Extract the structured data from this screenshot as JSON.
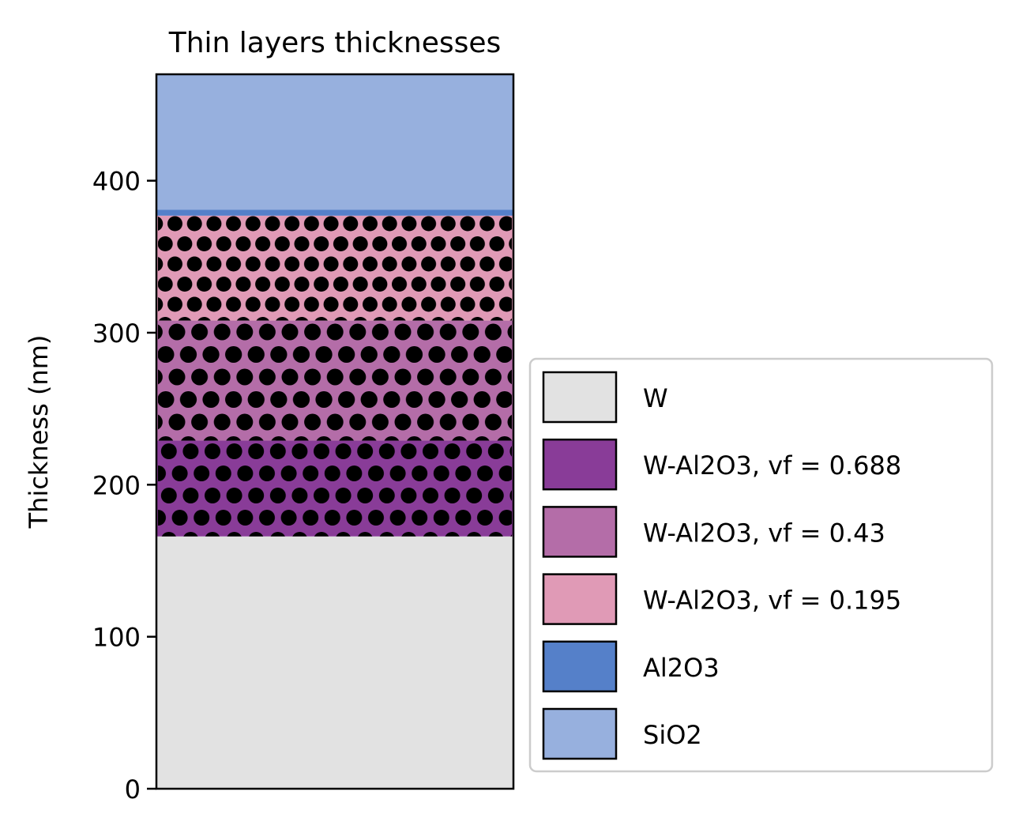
{
  "chart_data": {
    "type": "bar",
    "subtype": "stacked-layers",
    "title": "Thin layers thicknesses",
    "ylabel": "Thickness (nm)",
    "xlabel": "",
    "ylim": [
      0,
      470
    ],
    "yticks": [
      0,
      100,
      200,
      300,
      400
    ],
    "grid": false,
    "legend_position": "lower-right-outside",
    "layers": [
      {
        "name": "W",
        "bottom": 0,
        "thickness": 166,
        "color": "#e2e2e2",
        "pattern": "none"
      },
      {
        "name": "W-Al2O3, vf = 0.688",
        "bottom": 166,
        "thickness": 63,
        "color": "#893c98",
        "pattern": "dots-dense"
      },
      {
        "name": "W-Al2O3, vf = 0.43",
        "bottom": 229,
        "thickness": 79,
        "color": "#b46da8",
        "pattern": "dots-medium"
      },
      {
        "name": "W-Al2O3, vf = 0.195",
        "bottom": 308,
        "thickness": 69,
        "color": "#e09ab6",
        "pattern": "dots-sparse"
      },
      {
        "name": "Al2O3",
        "bottom": 377,
        "thickness": 4,
        "color": "#5580c9",
        "pattern": "none"
      },
      {
        "name": "SiO2",
        "bottom": 381,
        "thickness": 89,
        "color": "#97b0de",
        "pattern": "none"
      }
    ]
  }
}
